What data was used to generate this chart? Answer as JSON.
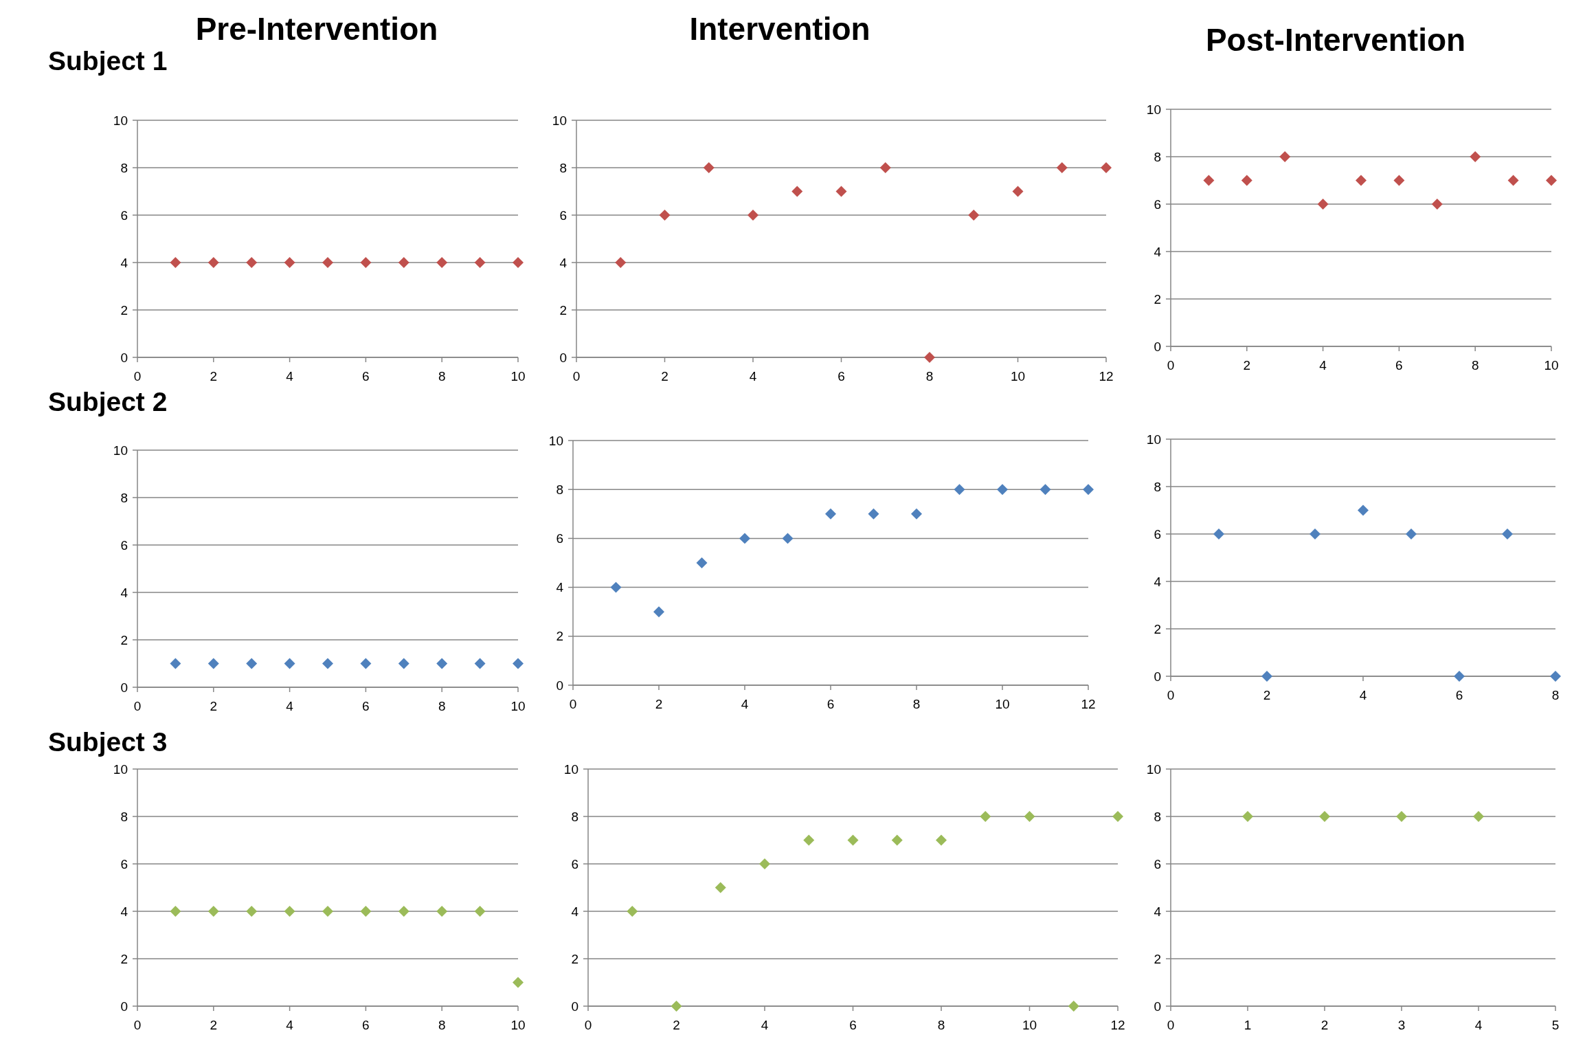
{
  "chart_data": [
    {
      "type": "scatter",
      "title": "Pre-Intervention",
      "annotations": [
        "Subject 1"
      ],
      "x": [
        1,
        2,
        3,
        4,
        5,
        6,
        7,
        8,
        9,
        10
      ],
      "series": [
        {
          "color": "#c0504d",
          "values": [
            4,
            4,
            4,
            4,
            4,
            4,
            4,
            4,
            4,
            4
          ]
        }
      ],
      "xlim": [
        0,
        10
      ],
      "xticks": [
        0,
        2,
        4,
        6,
        8,
        10
      ],
      "ylim": [
        0,
        10
      ],
      "yticks": [
        0,
        2,
        4,
        6,
        8,
        10
      ],
      "grid": "y",
      "marker": "diamond"
    },
    {
      "type": "scatter",
      "title": "Intervention",
      "x": [
        1,
        2,
        3,
        4,
        5,
        6,
        7,
        8,
        9,
        10,
        11,
        12
      ],
      "series": [
        {
          "color": "#c0504d",
          "values": [
            4,
            6,
            8,
            6,
            7,
            7,
            8,
            0,
            6,
            7,
            8,
            8
          ]
        }
      ],
      "xlim": [
        0,
        12
      ],
      "xticks": [
        0,
        2,
        4,
        6,
        8,
        10,
        12
      ],
      "ylim": [
        0,
        10
      ],
      "yticks": [
        0,
        2,
        4,
        6,
        8,
        10
      ],
      "grid": "y",
      "marker": "diamond"
    },
    {
      "type": "scatter",
      "title": "Post-Intervention",
      "x": [
        1,
        2,
        3,
        4,
        5,
        6,
        7,
        8,
        9,
        10
      ],
      "series": [
        {
          "color": "#c0504d",
          "values": [
            7,
            7,
            8,
            6,
            7,
            7,
            6,
            8,
            7,
            7
          ]
        }
      ],
      "xlim": [
        0,
        10
      ],
      "xticks": [
        0,
        2,
        4,
        6,
        8,
        10
      ],
      "ylim": [
        0,
        10
      ],
      "yticks": [
        0,
        2,
        4,
        6,
        8,
        10
      ],
      "grid": "y",
      "marker": "diamond"
    },
    {
      "type": "scatter",
      "annotations": [
        "Subject 2"
      ],
      "x": [
        1,
        2,
        3,
        4,
        5,
        6,
        7,
        8,
        9,
        10
      ],
      "series": [
        {
          "color": "#4f81bd",
          "values": [
            1,
            1,
            1,
            1,
            1,
            1,
            1,
            1,
            1,
            1
          ]
        }
      ],
      "xlim": [
        0,
        10
      ],
      "xticks": [
        0,
        2,
        4,
        6,
        8,
        10
      ],
      "ylim": [
        0,
        10
      ],
      "yticks": [
        0,
        2,
        4,
        6,
        8,
        10
      ],
      "grid": "y",
      "marker": "diamond"
    },
    {
      "type": "scatter",
      "x": [
        1,
        2,
        3,
        4,
        5,
        6,
        7,
        8,
        9,
        10,
        11,
        12
      ],
      "series": [
        {
          "color": "#4f81bd",
          "values": [
            4,
            3,
            5,
            6,
            6,
            7,
            7,
            7,
            8,
            8,
            8,
            8
          ]
        }
      ],
      "xlim": [
        0,
        12
      ],
      "xticks": [
        0,
        2,
        4,
        6,
        8,
        10,
        12
      ],
      "ylim": [
        0,
        10
      ],
      "yticks": [
        0,
        2,
        4,
        6,
        8,
        10
      ],
      "grid": "y",
      "marker": "diamond"
    },
    {
      "type": "scatter",
      "x": [
        1,
        2,
        3,
        4,
        5,
        6,
        7,
        8
      ],
      "series": [
        {
          "color": "#4f81bd",
          "values": [
            6,
            0,
            6,
            7,
            6,
            0,
            6,
            0
          ]
        }
      ],
      "xlim": [
        0,
        8
      ],
      "xticks": [
        0,
        2,
        4,
        6,
        8
      ],
      "ylim": [
        0,
        10
      ],
      "yticks": [
        0,
        2,
        4,
        6,
        8,
        10
      ],
      "grid": "y",
      "marker": "diamond"
    },
    {
      "type": "scatter",
      "annotations": [
        "Subject 3"
      ],
      "x": [
        1,
        2,
        3,
        4,
        5,
        6,
        7,
        8,
        9,
        10
      ],
      "series": [
        {
          "color": "#9bbb59",
          "values": [
            4,
            4,
            4,
            4,
            4,
            4,
            4,
            4,
            4,
            1
          ]
        }
      ],
      "xlim": [
        0,
        10
      ],
      "xticks": [
        0,
        2,
        4,
        6,
        8,
        10
      ],
      "ylim": [
        0,
        10
      ],
      "yticks": [
        0,
        2,
        4,
        6,
        8,
        10
      ],
      "grid": "y",
      "marker": "diamond"
    },
    {
      "type": "scatter",
      "x": [
        1,
        2,
        3,
        4,
        5,
        6,
        7,
        8,
        9,
        10,
        11,
        12
      ],
      "series": [
        {
          "color": "#9bbb59",
          "values": [
            4,
            0,
            5,
            6,
            7,
            7,
            7,
            7,
            8,
            8,
            0,
            8
          ]
        }
      ],
      "xlim": [
        0,
        12
      ],
      "xticks": [
        0,
        2,
        4,
        6,
        8,
        10,
        12
      ],
      "ylim": [
        0,
        10
      ],
      "yticks": [
        0,
        2,
        4,
        6,
        8,
        10
      ],
      "grid": "y",
      "marker": "diamond"
    },
    {
      "type": "scatter",
      "x": [
        1,
        2,
        3,
        4
      ],
      "series": [
        {
          "color": "#9bbb59",
          "values": [
            8,
            8,
            8,
            8
          ]
        }
      ],
      "xlim": [
        0,
        5
      ],
      "xticks": [
        0,
        1,
        2,
        3,
        4,
        5
      ],
      "ylim": [
        0,
        10
      ],
      "yticks": [
        0,
        2,
        4,
        6,
        8,
        10
      ],
      "grid": "y",
      "marker": "diamond"
    }
  ]
}
